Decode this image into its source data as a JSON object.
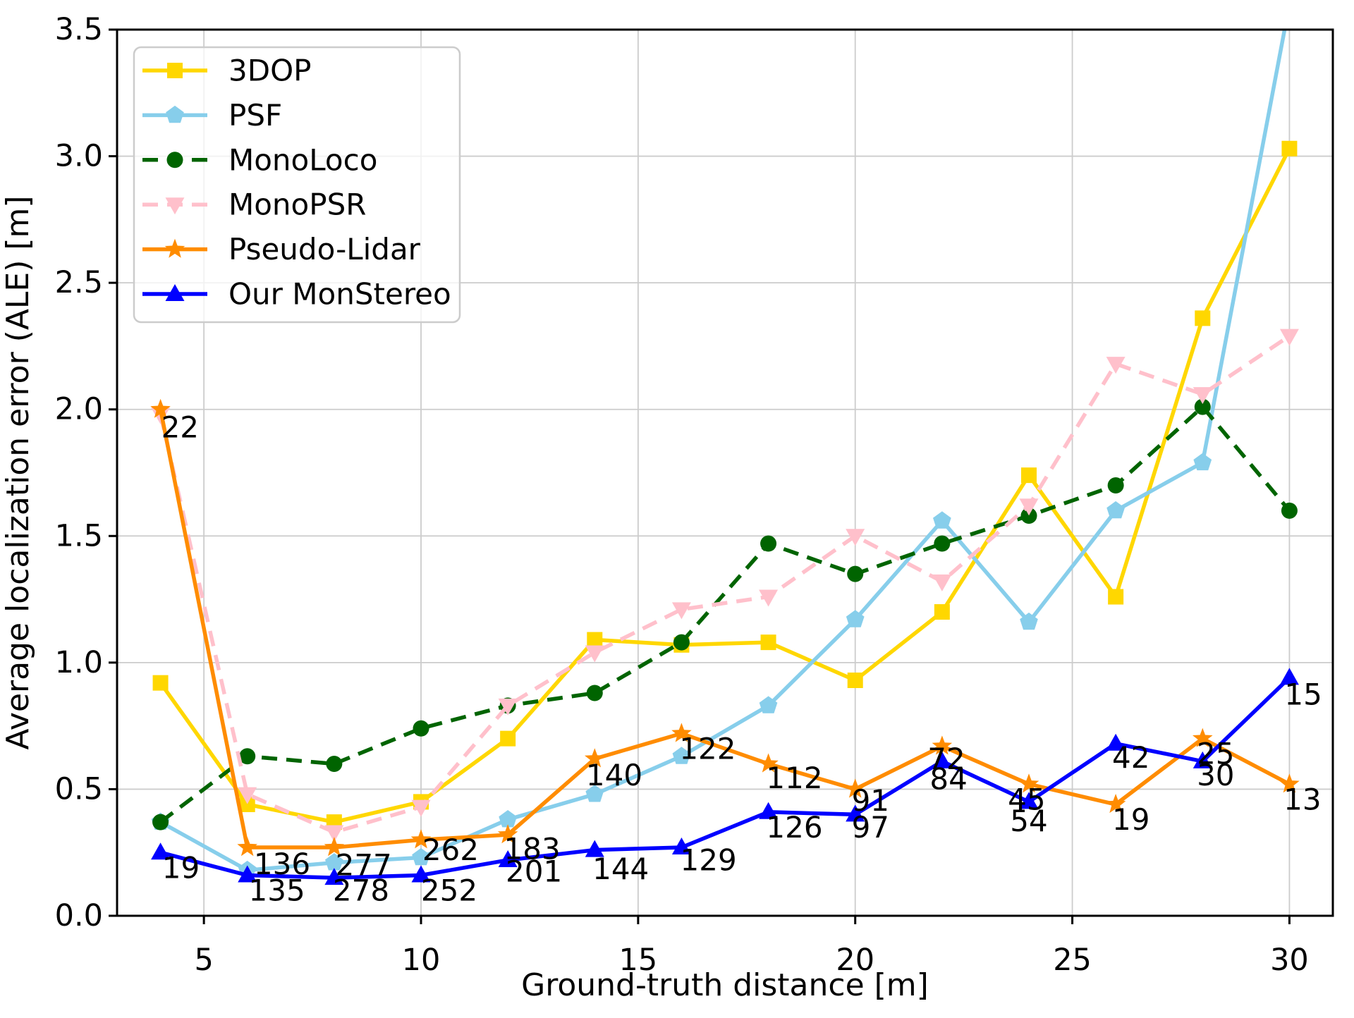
{
  "chart_data": {
    "type": "line",
    "title": "",
    "xlabel": "Ground-truth distance [m]",
    "ylabel": "Average localization error (ALE) [m]",
    "grid": true,
    "grid_color": "#cccccc",
    "legend_position": "upper-left",
    "xlim": [
      3,
      31
    ],
    "ylim": [
      0,
      3.5
    ],
    "xticks": [
      5,
      10,
      15,
      20,
      25,
      30
    ],
    "yticks": [
      0.0,
      0.5,
      1.0,
      1.5,
      2.0,
      2.5,
      3.0,
      3.5
    ],
    "x": [
      4,
      6,
      8,
      10,
      12,
      14,
      16,
      18,
      20,
      22,
      24,
      26,
      28,
      30
    ],
    "series": [
      {
        "name": "3DOP",
        "color": "#FFD700",
        "marker": "square",
        "line": "solid",
        "values": [
          0.92,
          0.44,
          0.37,
          0.45,
          0.7,
          1.09,
          1.07,
          1.08,
          0.93,
          1.2,
          1.74,
          1.26,
          2.36,
          3.03
        ]
      },
      {
        "name": "PSF",
        "color": "#87CEEB",
        "marker": "pentagon",
        "line": "solid",
        "values": [
          0.37,
          0.18,
          0.21,
          0.23,
          0.38,
          0.48,
          0.63,
          0.83,
          1.17,
          1.56,
          1.16,
          1.6,
          1.79,
          3.6
        ]
      },
      {
        "name": "MonoLoco",
        "color": "#006400",
        "marker": "circle",
        "line": "dashed",
        "values": [
          0.37,
          0.63,
          0.6,
          0.74,
          0.83,
          0.88,
          1.08,
          1.47,
          1.35,
          1.47,
          1.58,
          1.7,
          2.01,
          1.6
        ]
      },
      {
        "name": "MonoPSR",
        "color": "#FFC0CB",
        "marker": "triangle-down",
        "line": "dashed",
        "values": [
          1.98,
          0.48,
          0.33,
          0.43,
          0.83,
          1.04,
          1.21,
          1.26,
          1.5,
          1.32,
          1.62,
          2.18,
          2.06,
          2.29
        ]
      },
      {
        "name": "Pseudo-Lidar",
        "color": "#FF8C00",
        "marker": "star",
        "line": "solid",
        "values": [
          2.0,
          0.27,
          0.27,
          0.3,
          0.32,
          0.62,
          0.72,
          0.6,
          0.5,
          0.67,
          0.52,
          0.44,
          0.7,
          0.52
        ]
      },
      {
        "name": "Our MonStereo",
        "color": "#0000FF",
        "marker": "triangle-up",
        "line": "solid",
        "values": [
          0.25,
          0.16,
          0.15,
          0.16,
          0.22,
          0.26,
          0.27,
          0.41,
          0.4,
          0.61,
          0.45,
          0.68,
          0.61,
          0.94
        ]
      }
    ],
    "annotations": [
      {
        "series": "Pseudo-Lidar",
        "x": 4.45,
        "y": 1.93,
        "text": "22"
      },
      {
        "series": "Pseudo-Lidar",
        "x": 6.8,
        "y": 0.205,
        "text": "136"
      },
      {
        "series": "Pseudo-Lidar",
        "x": 8.68,
        "y": 0.2,
        "text": "277"
      },
      {
        "series": "Pseudo-Lidar",
        "x": 10.68,
        "y": 0.26,
        "text": "262"
      },
      {
        "series": "Pseudo-Lidar",
        "x": 12.56,
        "y": 0.265,
        "text": "183"
      },
      {
        "series": "Pseudo-Lidar",
        "x": 14.45,
        "y": 0.555,
        "text": "140"
      },
      {
        "series": "Pseudo-Lidar",
        "x": 16.6,
        "y": 0.66,
        "text": "122"
      },
      {
        "series": "Pseudo-Lidar",
        "x": 18.6,
        "y": 0.545,
        "text": "112"
      },
      {
        "series": "Pseudo-Lidar",
        "x": 20.35,
        "y": 0.455,
        "text": "91"
      },
      {
        "series": "Pseudo-Lidar",
        "x": 22.1,
        "y": 0.62,
        "text": "72"
      },
      {
        "series": "Pseudo-Lidar",
        "x": 23.95,
        "y": 0.46,
        "text": "45"
      },
      {
        "series": "Pseudo-Lidar",
        "x": 26.35,
        "y": 0.38,
        "text": "19"
      },
      {
        "series": "Pseudo-Lidar",
        "x": 28.3,
        "y": 0.64,
        "text": "25"
      },
      {
        "series": "Pseudo-Lidar",
        "x": 30.3,
        "y": 0.46,
        "text": "13"
      },
      {
        "series": "Our MonStereo",
        "x": 4.47,
        "y": 0.19,
        "text": "19"
      },
      {
        "series": "Our MonStereo",
        "x": 6.68,
        "y": 0.1,
        "text": "135"
      },
      {
        "series": "Our MonStereo",
        "x": 8.62,
        "y": 0.1,
        "text": "278"
      },
      {
        "series": "Our MonStereo",
        "x": 10.65,
        "y": 0.1,
        "text": "252"
      },
      {
        "series": "Our MonStereo",
        "x": 12.6,
        "y": 0.175,
        "text": "201"
      },
      {
        "series": "Our MonStereo",
        "x": 14.6,
        "y": 0.185,
        "text": "144"
      },
      {
        "series": "Our MonStereo",
        "x": 16.62,
        "y": 0.22,
        "text": "129"
      },
      {
        "series": "Our MonStereo",
        "x": 18.6,
        "y": 0.35,
        "text": "126"
      },
      {
        "series": "Our MonStereo",
        "x": 20.35,
        "y": 0.35,
        "text": "97"
      },
      {
        "series": "Our MonStereo",
        "x": 22.15,
        "y": 0.54,
        "text": "84"
      },
      {
        "series": "Our MonStereo",
        "x": 24.0,
        "y": 0.375,
        "text": "54"
      },
      {
        "series": "Our MonStereo",
        "x": 26.35,
        "y": 0.625,
        "text": "42"
      },
      {
        "series": "Our MonStereo",
        "x": 28.3,
        "y": 0.555,
        "text": "30"
      },
      {
        "series": "Our MonStereo",
        "x": 30.32,
        "y": 0.875,
        "text": "15"
      }
    ],
    "style": {
      "background": "#ffffff",
      "spine_color": "#000000",
      "tick_label_color": "#000000",
      "legend_border_color": "#cccccc"
    }
  }
}
